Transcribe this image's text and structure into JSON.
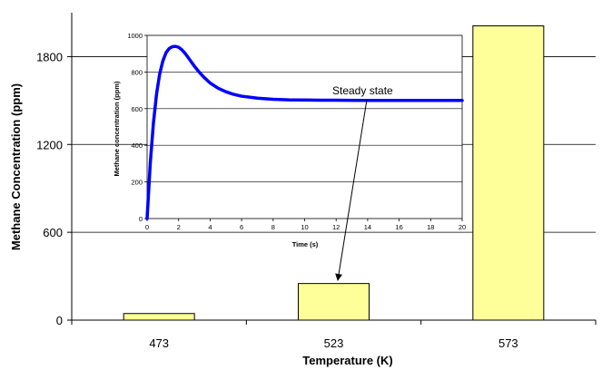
{
  "chart_data": [
    {
      "type": "bar",
      "categories": [
        "473",
        "523",
        "573"
      ],
      "values": [
        45,
        250,
        2010
      ],
      "xlabel": "Temperature (K)",
      "ylabel": "Methane Concentration (ppm)",
      "ylim": [
        0,
        2100
      ],
      "yticks": [
        0,
        600,
        1200,
        1800
      ],
      "grid": true,
      "colors": {
        "bar_fill": "#ffff99",
        "bar_stroke": "#000000"
      }
    },
    {
      "type": "line",
      "xlabel": "Time (s)",
      "ylabel": "Methane concentration (ppm)",
      "xlim": [
        0,
        20
      ],
      "ylim": [
        0,
        1000
      ],
      "xticks": [
        0,
        2,
        4,
        6,
        8,
        10,
        12,
        14,
        16,
        18,
        20
      ],
      "yticks": [
        0,
        200,
        400,
        600,
        800,
        1000
      ],
      "grid": true,
      "series": [
        {
          "color": "#0000ff",
          "x": [
            0,
            0.2,
            0.4,
            0.6,
            0.8,
            1.0,
            1.2,
            1.4,
            1.6,
            1.8,
            2.0,
            2.2,
            2.4,
            2.6,
            2.8,
            3.0,
            3.3,
            3.6,
            4.0,
            4.5,
            5.0,
            5.5,
            6.0,
            7.0,
            8.0,
            9.0,
            10.0,
            11.0,
            12.0,
            14.0,
            16.0,
            18.0,
            20.0
          ],
          "y": [
            0,
            300,
            520,
            680,
            790,
            860,
            905,
            928,
            938,
            940,
            935,
            922,
            903,
            880,
            856,
            832,
            800,
            772,
            740,
            712,
            692,
            678,
            668,
            657,
            651,
            648,
            647,
            646,
            646,
            645,
            645,
            645,
            645
          ]
        }
      ],
      "annotation": {
        "text": "Steady state",
        "x": 13,
        "y": 645
      }
    }
  ]
}
